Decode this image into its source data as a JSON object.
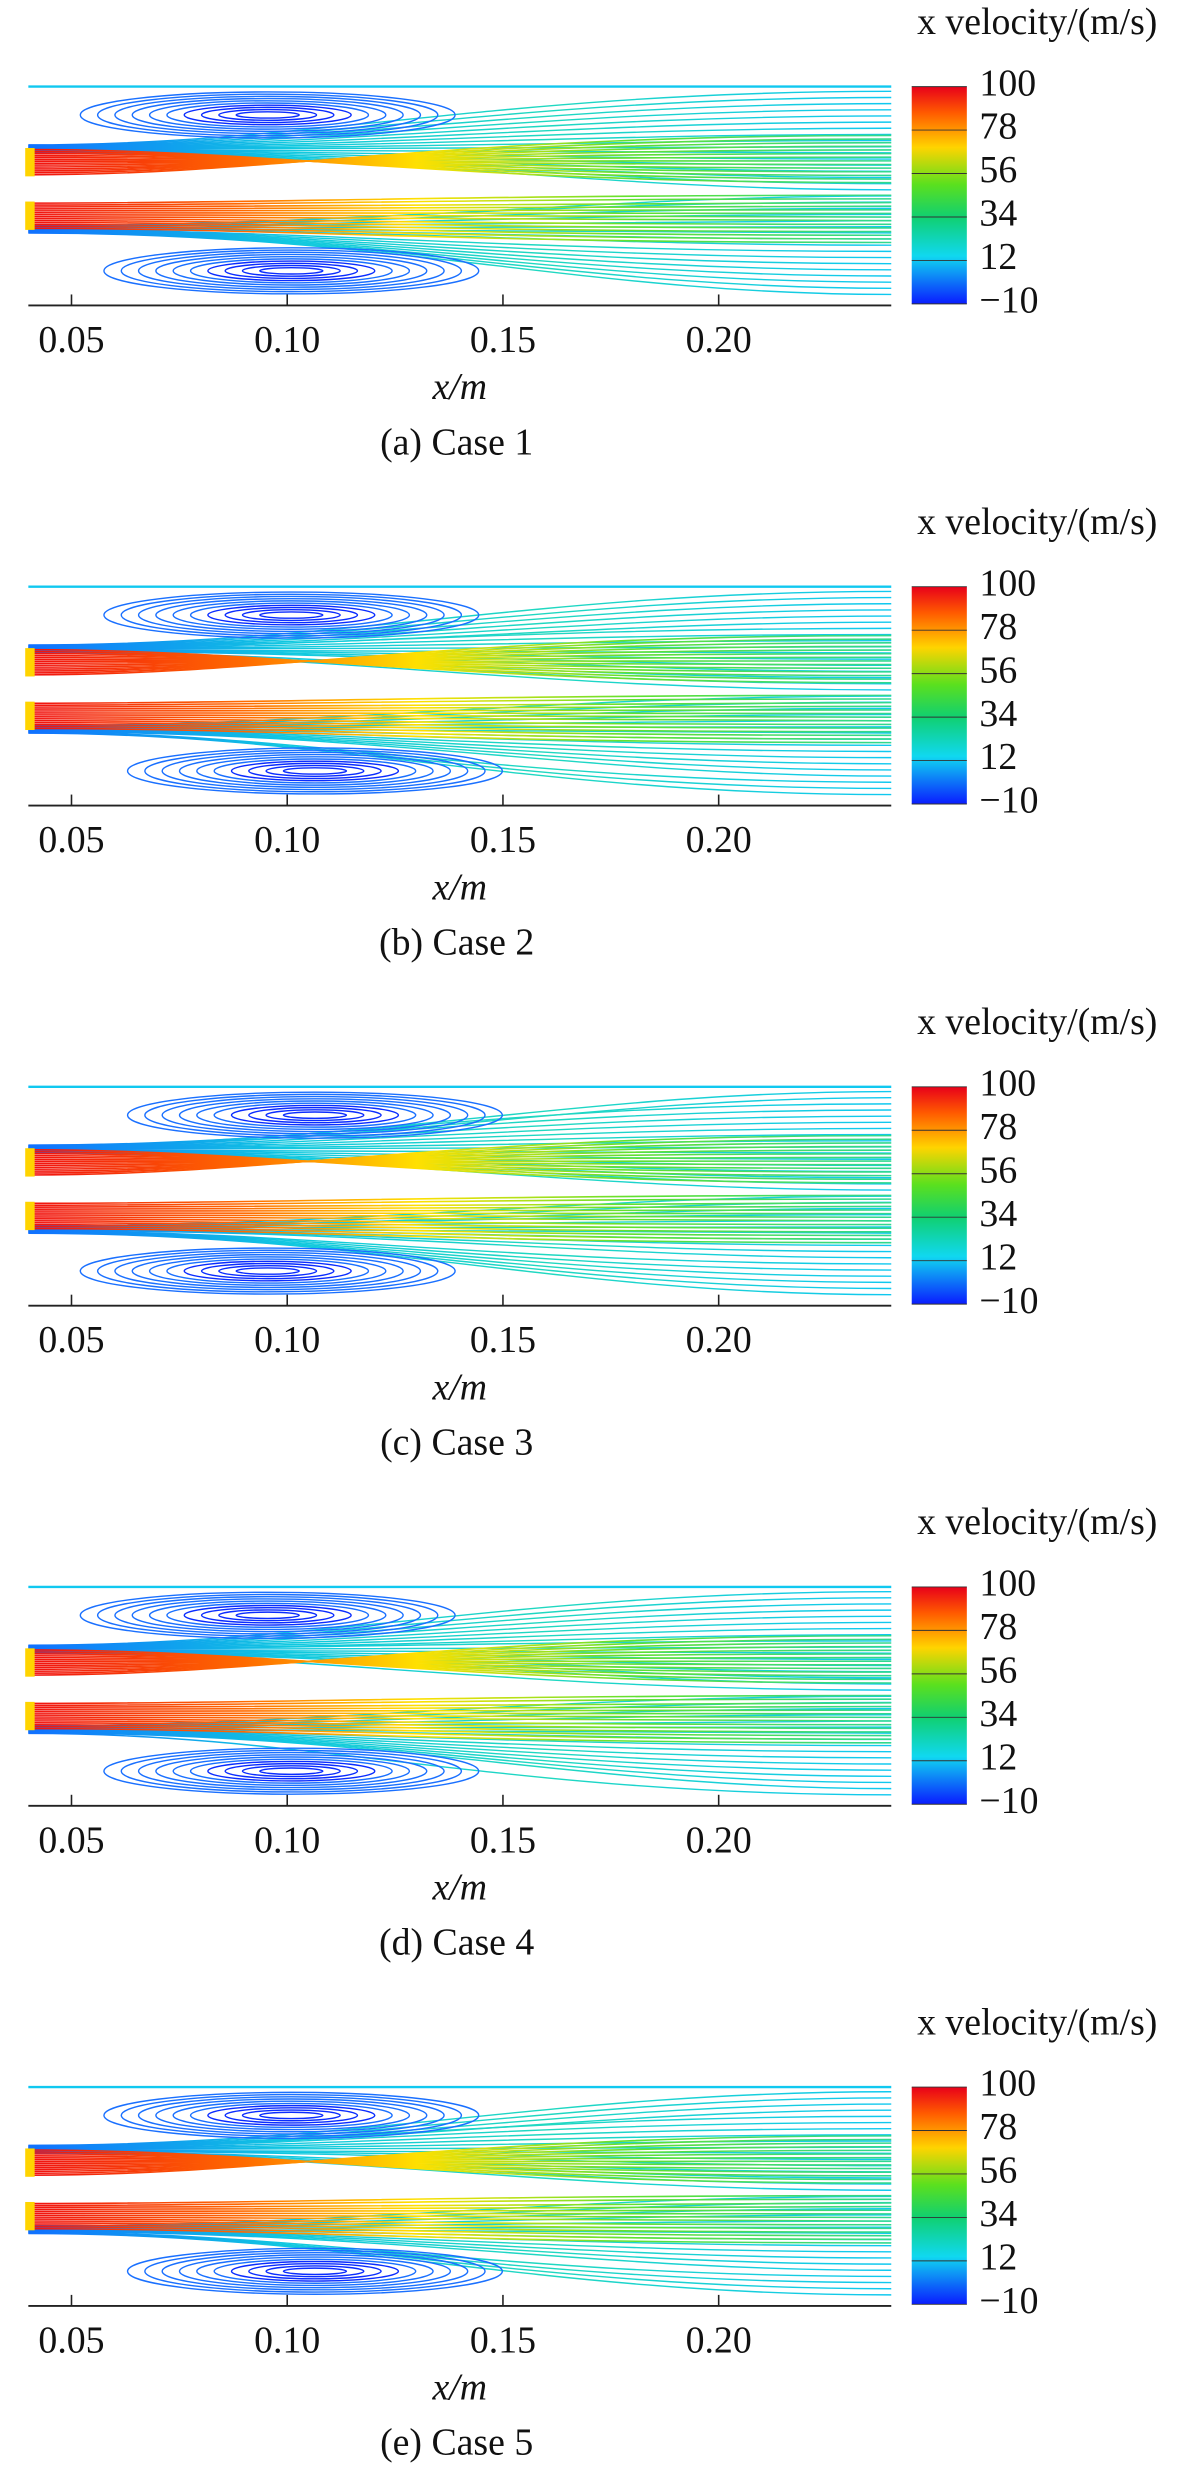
{
  "chart_data": [
    {
      "type": "streamline",
      "caption": "(a) Case 1",
      "xlabel": "x/m",
      "colorbar_label": "x velocity/(m/s)",
      "xlim": [
        0.04,
        0.24
      ],
      "xticks": [
        {
          "value": 0.05,
          "label": "0.05"
        },
        {
          "value": 0.1,
          "label": "0.10"
        },
        {
          "value": 0.15,
          "label": "0.15"
        },
        {
          "value": 0.2,
          "label": "0.20"
        }
      ],
      "clim": [
        -10,
        100
      ],
      "cticks": [
        100,
        78,
        56,
        34,
        12,
        {
          "value": -10,
          "label": "−10"
        }
      ]
    },
    {
      "type": "streamline",
      "caption": "(b) Case 2",
      "xlabel": "x/m",
      "colorbar_label": "x velocity/(m/s)",
      "xlim": [
        0.04,
        0.24
      ],
      "xticks": [
        {
          "value": 0.05,
          "label": "0.05"
        },
        {
          "value": 0.1,
          "label": "0.10"
        },
        {
          "value": 0.15,
          "label": "0.15"
        },
        {
          "value": 0.2,
          "label": "0.20"
        }
      ],
      "clim": [
        -10,
        100
      ],
      "cticks": [
        100,
        78,
        56,
        34,
        12,
        {
          "value": -10,
          "label": "−10"
        }
      ]
    },
    {
      "type": "streamline",
      "caption": "(c) Case 3",
      "xlabel": "x/m",
      "colorbar_label": "x velocity/(m/s)",
      "xlim": [
        0.04,
        0.24
      ],
      "xticks": [
        {
          "value": 0.05,
          "label": "0.05"
        },
        {
          "value": 0.1,
          "label": "0.10"
        },
        {
          "value": 0.15,
          "label": "0.15"
        },
        {
          "value": 0.2,
          "label": "0.20"
        }
      ],
      "clim": [
        -10,
        100
      ],
      "cticks": [
        100,
        78,
        56,
        34,
        12,
        {
          "value": -10,
          "label": "−10"
        }
      ]
    },
    {
      "type": "streamline",
      "caption": "(d) Case 4",
      "xlabel": "x/m",
      "colorbar_label": "x velocity/(m/s)",
      "xlim": [
        0.04,
        0.24
      ],
      "xticks": [
        {
          "value": 0.05,
          "label": "0.05"
        },
        {
          "value": 0.1,
          "label": "0.10"
        },
        {
          "value": 0.15,
          "label": "0.15"
        },
        {
          "value": 0.2,
          "label": "0.20"
        }
      ],
      "clim": [
        -10,
        100
      ],
      "cticks": [
        100,
        78,
        56,
        34,
        12,
        {
          "value": -10,
          "label": "−10"
        }
      ]
    },
    {
      "type": "streamline",
      "caption": "(e) Case 5",
      "xlabel": "x/m",
      "colorbar_label": "x velocity/(m/s)",
      "xlim": [
        0.04,
        0.24
      ],
      "xticks": [
        {
          "value": 0.05,
          "label": "0.05"
        },
        {
          "value": 0.1,
          "label": "0.10"
        },
        {
          "value": 0.15,
          "label": "0.15"
        },
        {
          "value": 0.2,
          "label": "0.20"
        }
      ],
      "clim": [
        -10,
        100
      ],
      "cticks": [
        100,
        78,
        56,
        34,
        12,
        {
          "value": -10,
          "label": "−10"
        }
      ]
    }
  ]
}
